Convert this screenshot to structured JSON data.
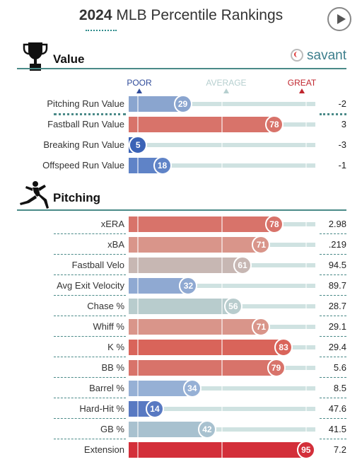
{
  "header": {
    "year": "2024",
    "title": "MLB Percentile Rankings",
    "play_icon": "play-icon"
  },
  "value_section": {
    "title": "Value",
    "icon": "trophy-icon",
    "brand": "savant",
    "brand_icon": "baseball-icon"
  },
  "scale": {
    "poor": "POOR",
    "average": "AVERAGE",
    "great": "GREAT"
  },
  "pitching_section": {
    "title": "Pitching",
    "icon": "pitcher-icon"
  },
  "chart_data": [
    {
      "type": "bar",
      "title": "Value",
      "xlim": [
        0,
        100
      ],
      "rows": [
        {
          "label": "Pitching Run Value",
          "percentile": 29,
          "value": "-2",
          "color": "#8aa5cf"
        },
        {
          "label": "Fastball Run Value",
          "percentile": 78,
          "value": "3",
          "color": "#d8736a"
        },
        {
          "label": "Breaking Run Value",
          "percentile": 5,
          "value": "-3",
          "color": "#3b63b6"
        },
        {
          "label": "Offspeed Run Value",
          "percentile": 18,
          "value": "-1",
          "color": "#5f83c7"
        }
      ]
    },
    {
      "type": "bar",
      "title": "Pitching",
      "xlim": [
        0,
        100
      ],
      "rows": [
        {
          "label": "xERA",
          "percentile": 78,
          "value": "2.98",
          "color": "#d8736a"
        },
        {
          "label": "xBA",
          "percentile": 71,
          "value": ".219",
          "color": "#d9958a"
        },
        {
          "label": "Fastball Velo",
          "percentile": 61,
          "value": "94.5",
          "color": "#c7b7b3"
        },
        {
          "label": "Avg Exit Velocity",
          "percentile": 32,
          "value": "89.7",
          "color": "#8fa9d2"
        },
        {
          "label": "Chase %",
          "percentile": 56,
          "value": "28.7",
          "color": "#b8cccd"
        },
        {
          "label": "Whiff %",
          "percentile": 71,
          "value": "29.1",
          "color": "#d9958a"
        },
        {
          "label": "K %",
          "percentile": 83,
          "value": "29.4",
          "color": "#d9645a"
        },
        {
          "label": "BB %",
          "percentile": 79,
          "value": "5.6",
          "color": "#d8736a"
        },
        {
          "label": "Barrel %",
          "percentile": 34,
          "value": "8.5",
          "color": "#96b0d5"
        },
        {
          "label": "Hard-Hit %",
          "percentile": 14,
          "value": "47.6",
          "color": "#5879c2"
        },
        {
          "label": "GB %",
          "percentile": 42,
          "value": "41.5",
          "color": "#a8c1cf"
        },
        {
          "label": "Extension",
          "percentile": 95,
          "value": "7.2",
          "color": "#d32f3a"
        }
      ]
    }
  ]
}
